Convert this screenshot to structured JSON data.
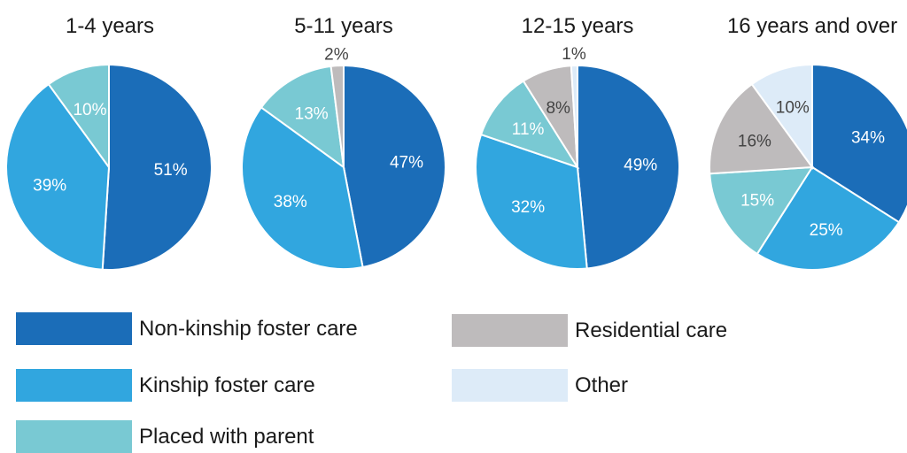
{
  "categories": [
    "Non-kinship foster care",
    "Kinship foster care",
    "Placed with parent",
    "Residential care",
    "Other"
  ],
  "colors": {
    "Non-kinship foster care": "#1b6db8",
    "Kinship foster care": "#31a6df",
    "Placed with parent": "#79c9d3",
    "Residential care": "#bebbbc",
    "Other": "#ddebf8"
  },
  "chart_data": [
    {
      "type": "pie",
      "title": "1-4 years",
      "slices": [
        {
          "name": "Non-kinship foster care",
          "value": 51,
          "label": "51%"
        },
        {
          "name": "Kinship foster care",
          "value": 39,
          "label": "39%"
        },
        {
          "name": "Placed with parent",
          "value": 10,
          "label": "10%"
        }
      ]
    },
    {
      "type": "pie",
      "title": "5-11 years",
      "slices": [
        {
          "name": "Non-kinship foster care",
          "value": 47,
          "label": "47%"
        },
        {
          "name": "Kinship foster care",
          "value": 38,
          "label": "38%"
        },
        {
          "name": "Placed with parent",
          "value": 13,
          "label": "13%"
        },
        {
          "name": "Residential care",
          "value": 2,
          "label": "2%"
        }
      ]
    },
    {
      "type": "pie",
      "title": "12-15 years",
      "slices": [
        {
          "name": "Non-kinship foster care",
          "value": 49,
          "label": "49%"
        },
        {
          "name": "Kinship foster care",
          "value": 32,
          "label": "32%"
        },
        {
          "name": "Placed with parent",
          "value": 11,
          "label": "11%"
        },
        {
          "name": "Residential care",
          "value": 8,
          "label": "8%"
        },
        {
          "name": "Other",
          "value": 1,
          "label": "1%"
        }
      ]
    },
    {
      "type": "pie",
      "title": "16 years and over",
      "slices": [
        {
          "name": "Non-kinship foster care",
          "value": 34,
          "label": "34%"
        },
        {
          "name": "Kinship foster care",
          "value": 25,
          "label": "25%"
        },
        {
          "name": "Placed with parent",
          "value": 15,
          "label": "15%"
        },
        {
          "name": "Residential care",
          "value": 16,
          "label": "16%"
        },
        {
          "name": "Other",
          "value": 10,
          "label": "10%"
        }
      ]
    }
  ],
  "legend": {
    "items": [
      {
        "label": "Non-kinship foster care"
      },
      {
        "label": "Kinship foster care"
      },
      {
        "label": "Placed with parent"
      },
      {
        "label": "Residential care"
      },
      {
        "label": "Other"
      }
    ]
  }
}
